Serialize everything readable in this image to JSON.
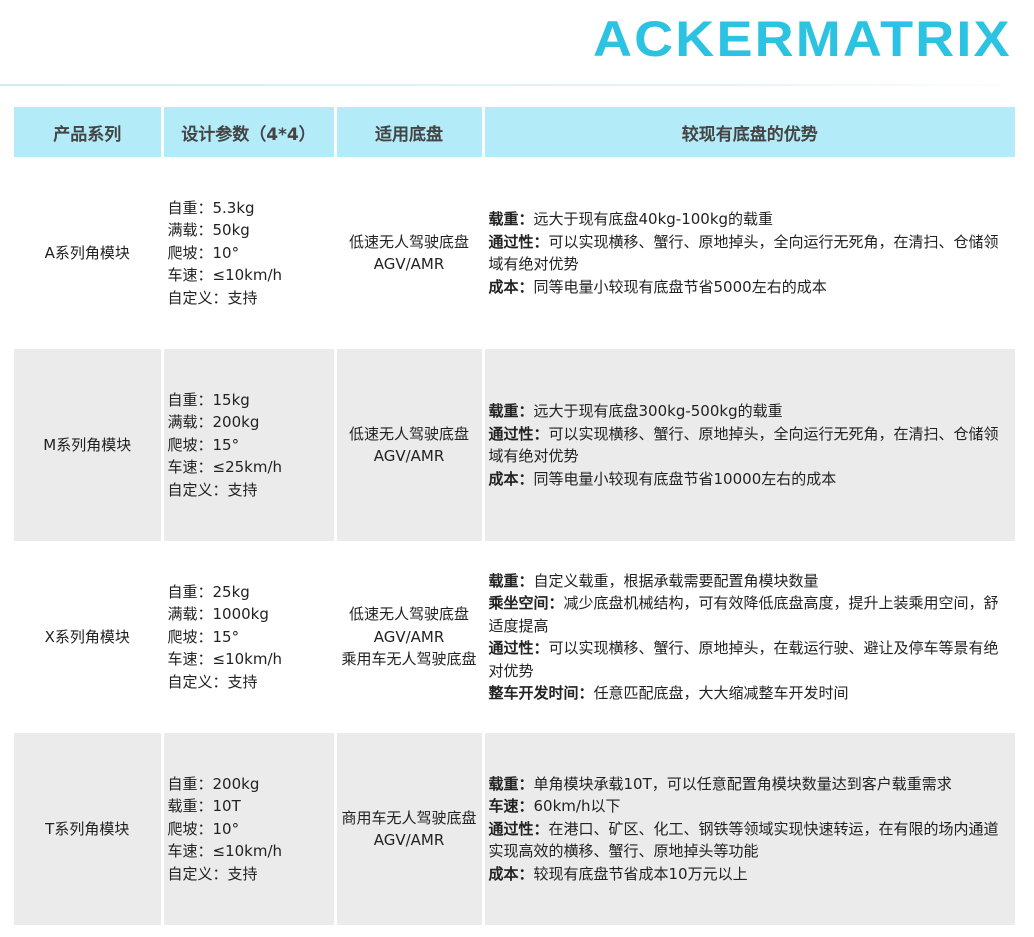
{
  "logo": "ACKERMATRIX",
  "headers": [
    "产品系列",
    "设计参数（4*4）",
    "适用底盘",
    "较现有底盘的优势"
  ],
  "rows": [
    {
      "series": "A系列角模块",
      "params": [
        "自重：5.3kg",
        "满载：50kg",
        "爬坡：10°",
        "车速：≤10km/h",
        "自定义：支持"
      ],
      "chassis": "低速无人驾驶底盘\nAGV/AMR",
      "adv": [
        {
          "k": "载重：",
          "v": "远大于现有底盘40kg-100kg的载重"
        },
        {
          "k": "通过性：",
          "v": "可以实现横移、蟹行、原地掉头，全向运行无死角，在清扫、仓储领域有绝对优势"
        },
        {
          "k": "成本：",
          "v": "同等电量小较现有底盘节省5000左右的成本"
        }
      ]
    },
    {
      "series": "M系列角模块",
      "params": [
        "自重：15kg",
        "满载：200kg",
        "爬坡：15°",
        "车速：≤25km/h",
        "自定义：支持"
      ],
      "chassis": "低速无人驾驶底盘\nAGV/AMR",
      "adv": [
        {
          "k": "载重：",
          "v": "远大于现有底盘300kg-500kg的载重"
        },
        {
          "k": "通过性：",
          "v": "可以实现横移、蟹行、原地掉头，全向运行无死角，在清扫、仓储领域有绝对优势"
        },
        {
          "k": "成本：",
          "v": "同等电量小较现有底盘节省10000左右的成本"
        }
      ]
    },
    {
      "series": "X系列角模块",
      "params": [
        "自重：25kg",
        "满载：1000kg",
        "爬坡：15°",
        "车速：≤10km/h",
        "自定义：支持"
      ],
      "chassis": "低速无人驾驶底盘\nAGV/AMR\n乘用车无人驾驶底盘",
      "adv": [
        {
          "k": "载重：",
          "v": "自定义载重，根据承载需要配置角模块数量"
        },
        {
          "k": "乘坐空间：",
          "v": "减少底盘机械结构，可有效降低底盘高度，提升上装乘用空间，舒适度提高"
        },
        {
          "k": "通过性：",
          "v": "可以实现横移、蟹行、原地掉头，在载运行驶、避让及停车等景有绝对优势"
        },
        {
          "k": "整车开发时间：",
          "v": "任意匹配底盘，大大缩减整车开发时间"
        }
      ]
    },
    {
      "series": "T系列角模块",
      "params": [
        "自重：200kg",
        "载重：10T",
        "爬坡：10°",
        "车速：≤10km/h",
        "自定义：支持"
      ],
      "chassis": "商用车无人驾驶底盘\nAGV/AMR",
      "adv": [
        {
          "k": "载重：",
          "v": "单角模块承载10T，可以任意配置角模块数量达到客户载重需求"
        },
        {
          "k": "车速：",
          "v": "60km/h以下"
        },
        {
          "k": "通过性：",
          "v": "在港口、矿区、化工、钢铁等领域实现快速转运，在有限的场内通道实现高效的横移、蟹行、原地掉头等功能"
        },
        {
          "k": "成本：",
          "v": "较现有底盘节省成本10万元以上"
        }
      ]
    }
  ]
}
